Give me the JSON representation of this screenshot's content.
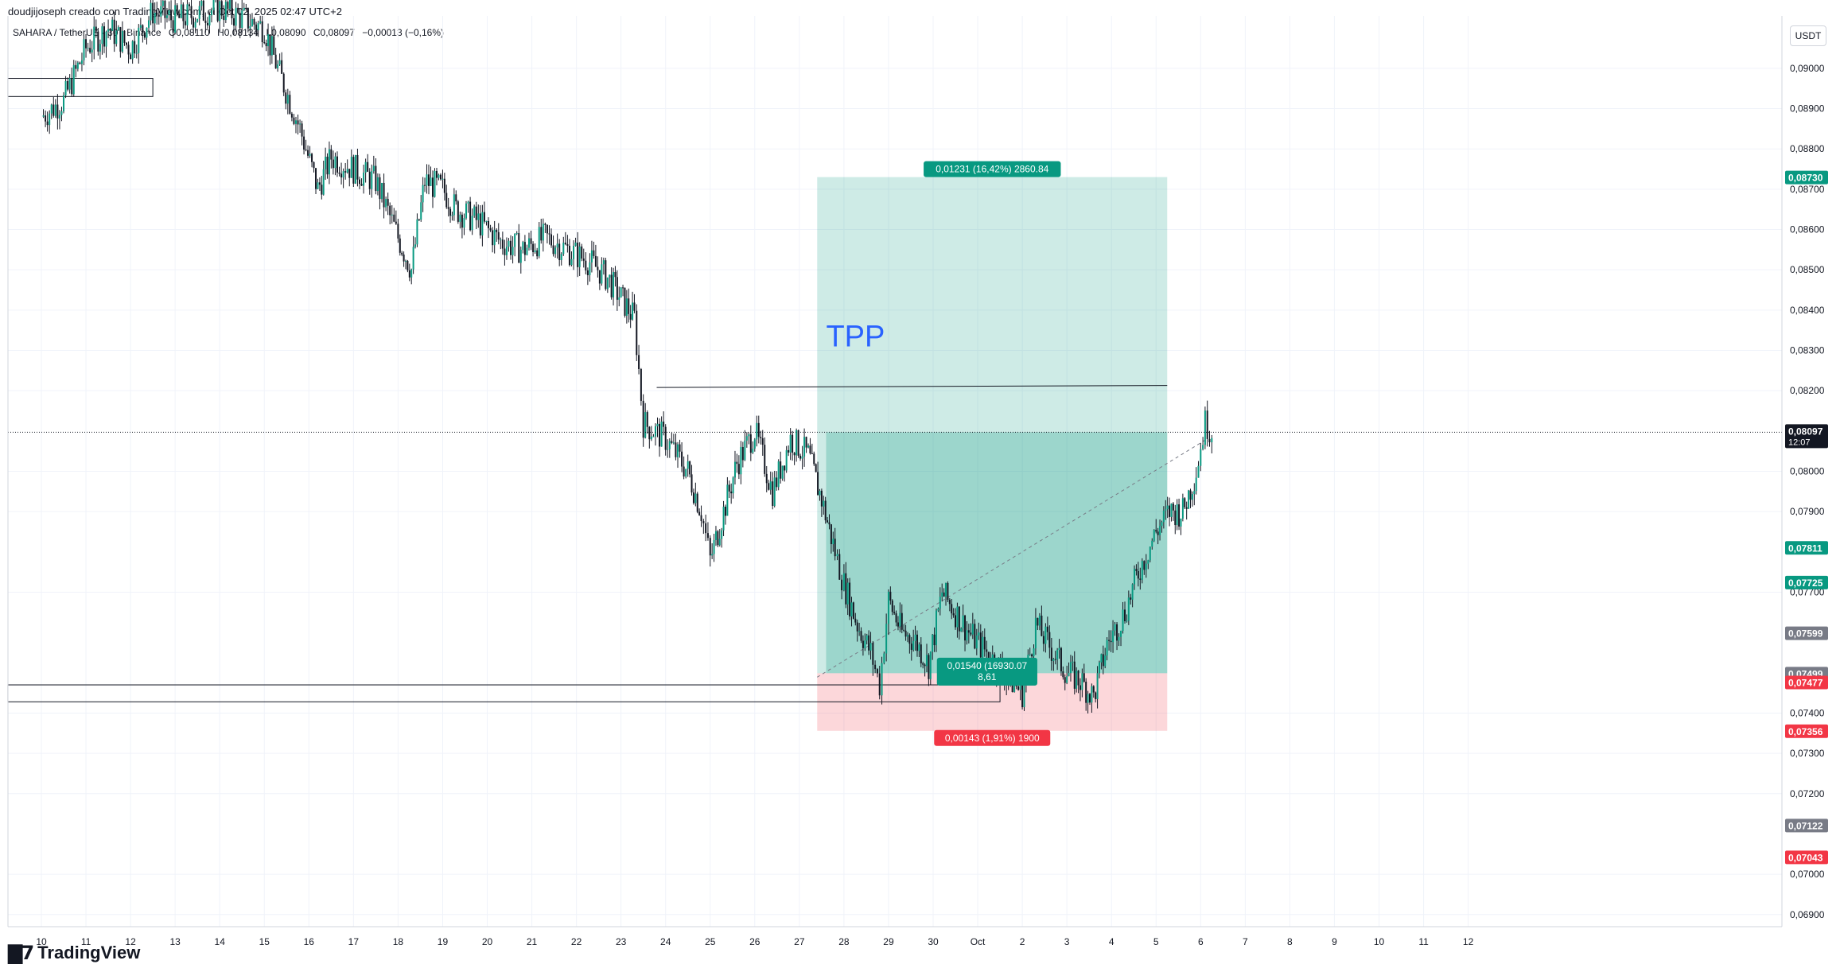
{
  "header": {
    "credit": "doudjijoseph creado con TradingView.com, el Oct 02, 2025 02:47 UTC+2",
    "symbol": "SAHARA / TetherUS · 30 · Binance",
    "open": "O0,08110",
    "high": "H0,08134",
    "low": "L0,08090",
    "close": "C0,08097",
    "change": "−0,00013 (−0,16%)"
  },
  "axis": {
    "currency": "USDT"
  },
  "brand": {
    "logo_icon": "tradingview-logo-icon",
    "name": "TradingView"
  },
  "colors": {
    "profit": "#089981",
    "loss": "#f23645",
    "candle": "#131722",
    "accent_text": "#2962ff",
    "gray_label": "#787b86"
  },
  "annotations": {
    "tpp_label": "TPP",
    "profit_tag": "0,01231 (16,42%) 2860.84",
    "loss_tag": "0,00143 (1,91%) 1900",
    "mid_tag_1": "0,01540 (16930.07",
    "mid_tag_2": "8,61"
  },
  "chart_data": {
    "type": "candlestick",
    "title": "SAHARA / TetherUS · 30 · Binance",
    "xlabel": "",
    "ylabel": "",
    "ylim": [
      0.0687,
      0.0913
    ],
    "grid": true,
    "y_ticks": [
      "0,06900",
      "0,07000",
      "0,07200",
      "0,07300",
      "0,07400",
      "0,07700",
      "0,07900",
      "0,08000",
      "0,08200",
      "0,08300",
      "0,08400",
      "0,08500",
      "0,08600",
      "0,08700",
      "0,08800",
      "0,08900",
      "0,09000"
    ],
    "y_tick_values": [
      0.069,
      0.07,
      0.072,
      0.073,
      0.074,
      0.077,
      0.079,
      0.08,
      0.082,
      0.083,
      0.084,
      0.085,
      0.086,
      0.087,
      0.088,
      0.089,
      0.09
    ],
    "x_ticks": [
      "10",
      "11",
      "12",
      "13",
      "14",
      "15",
      "16",
      "17",
      "18",
      "19",
      "20",
      "21",
      "22",
      "23",
      "24",
      "25",
      "26",
      "27",
      "28",
      "29",
      "30",
      "Oct",
      "2",
      "3",
      "4",
      "5",
      "6",
      "7",
      "8",
      "9",
      "10",
      "11",
      "12"
    ],
    "price_path": [
      [
        10.0,
        0.0888
      ],
      [
        10.5,
        0.0892
      ],
      [
        11.0,
        0.0905
      ],
      [
        11.5,
        0.091
      ],
      [
        12.0,
        0.0905
      ],
      [
        12.5,
        0.0914
      ],
      [
        13.0,
        0.0912
      ],
      [
        14.0,
        0.0915
      ],
      [
        15.0,
        0.091
      ],
      [
        15.3,
        0.09
      ],
      [
        15.8,
        0.0885
      ],
      [
        16.2,
        0.087
      ],
      [
        16.5,
        0.0878
      ],
      [
        17.0,
        0.0875
      ],
      [
        17.5,
        0.0872
      ],
      [
        18.0,
        0.0858
      ],
      [
        18.3,
        0.085
      ],
      [
        18.6,
        0.0872
      ],
      [
        19.0,
        0.087
      ],
      [
        19.3,
        0.0865
      ],
      [
        19.8,
        0.0862
      ],
      [
        20.3,
        0.0857
      ],
      [
        20.8,
        0.0855
      ],
      [
        21.3,
        0.0858
      ],
      [
        21.8,
        0.0855
      ],
      [
        22.3,
        0.0852
      ],
      [
        22.7,
        0.0848
      ],
      [
        23.0,
        0.0843
      ],
      [
        23.3,
        0.0838
      ],
      [
        23.5,
        0.0812
      ],
      [
        24.0,
        0.0808
      ],
      [
        24.5,
        0.08
      ],
      [
        24.8,
        0.079
      ],
      [
        25.0,
        0.0778
      ],
      [
        25.3,
        0.079
      ],
      [
        25.6,
        0.0802
      ],
      [
        26.0,
        0.081
      ],
      [
        26.4,
        0.0795
      ],
      [
        26.8,
        0.0808
      ],
      [
        27.2,
        0.0804
      ],
      [
        27.5,
        0.0793
      ],
      [
        27.8,
        0.078
      ],
      [
        28.0,
        0.0772
      ],
      [
        28.3,
        0.0762
      ],
      [
        28.6,
        0.0755
      ],
      [
        28.8,
        0.0747
      ],
      [
        29.0,
        0.0768
      ],
      [
        29.3,
        0.076
      ],
      [
        29.6,
        0.0758
      ],
      [
        29.9,
        0.0752
      ],
      [
        30.2,
        0.077
      ],
      [
        30.5,
        0.0765
      ],
      [
        30.8,
        0.076
      ],
      [
        31.2,
        0.0755
      ],
      [
        31.6,
        0.075
      ],
      [
        32.0,
        0.0745
      ],
      [
        32.3,
        0.0762
      ],
      [
        32.7,
        0.0755
      ],
      [
        33.0,
        0.075
      ],
      [
        33.3,
        0.0748
      ],
      [
        33.6,
        0.0744
      ],
      [
        33.9,
        0.0757
      ],
      [
        34.3,
        0.0765
      ],
      [
        34.6,
        0.0775
      ],
      [
        35.0,
        0.0785
      ],
      [
        35.3,
        0.079
      ],
      [
        35.6,
        0.079
      ],
      [
        35.9,
        0.08
      ],
      [
        36.1,
        0.0812
      ],
      [
        36.25,
        0.081
      ]
    ],
    "levels": [
      {
        "name": "take-profit",
        "value": 0.0873,
        "label": "0,08730",
        "color": "#089981"
      },
      {
        "name": "current",
        "value": 0.08097,
        "label": "0,08097",
        "sub": "12:07",
        "color": "#131722"
      },
      {
        "name": "level-07811",
        "value": 0.07811,
        "label": "0,07811",
        "color": "#089981"
      },
      {
        "name": "level-07725",
        "value": 0.07725,
        "label": "0,07725",
        "color": "#089981"
      },
      {
        "name": "level-07599",
        "value": 0.07599,
        "label": "0,07599",
        "color": "#787b86"
      },
      {
        "name": "entry",
        "value": 0.07499,
        "label": "0,07499",
        "color": "#787b86"
      },
      {
        "name": "level-07477",
        "value": 0.07477,
        "label": "0,07477",
        "color": "#f23645"
      },
      {
        "name": "stop-loss",
        "value": 0.07356,
        "label": "0,07356",
        "color": "#f23645"
      },
      {
        "name": "level-07122",
        "value": 0.07122,
        "label": "0,07122",
        "color": "#787b86"
      },
      {
        "name": "level-07043",
        "value": 0.07043,
        "label": "0,07043",
        "color": "#f23645"
      }
    ],
    "position": {
      "type": "long",
      "x_start": 27.4,
      "x_end": 35.25,
      "entry": 0.07499,
      "target": 0.0873,
      "stop": 0.07356,
      "filled_from_x": 27.6,
      "filled_price": 0.08097
    },
    "resistance": {
      "x_start": 23.8,
      "x_end": 35.25,
      "y_start": 0.08208,
      "y_end": 0.08213
    },
    "boxes": [
      {
        "x_start": 9.25,
        "x_end": 12.5,
        "top": 0.08975,
        "bottom": 0.0893
      },
      {
        "x_start": 9.25,
        "x_end": 31.5,
        "top": 0.0747,
        "bottom": 0.07428
      }
    ]
  }
}
